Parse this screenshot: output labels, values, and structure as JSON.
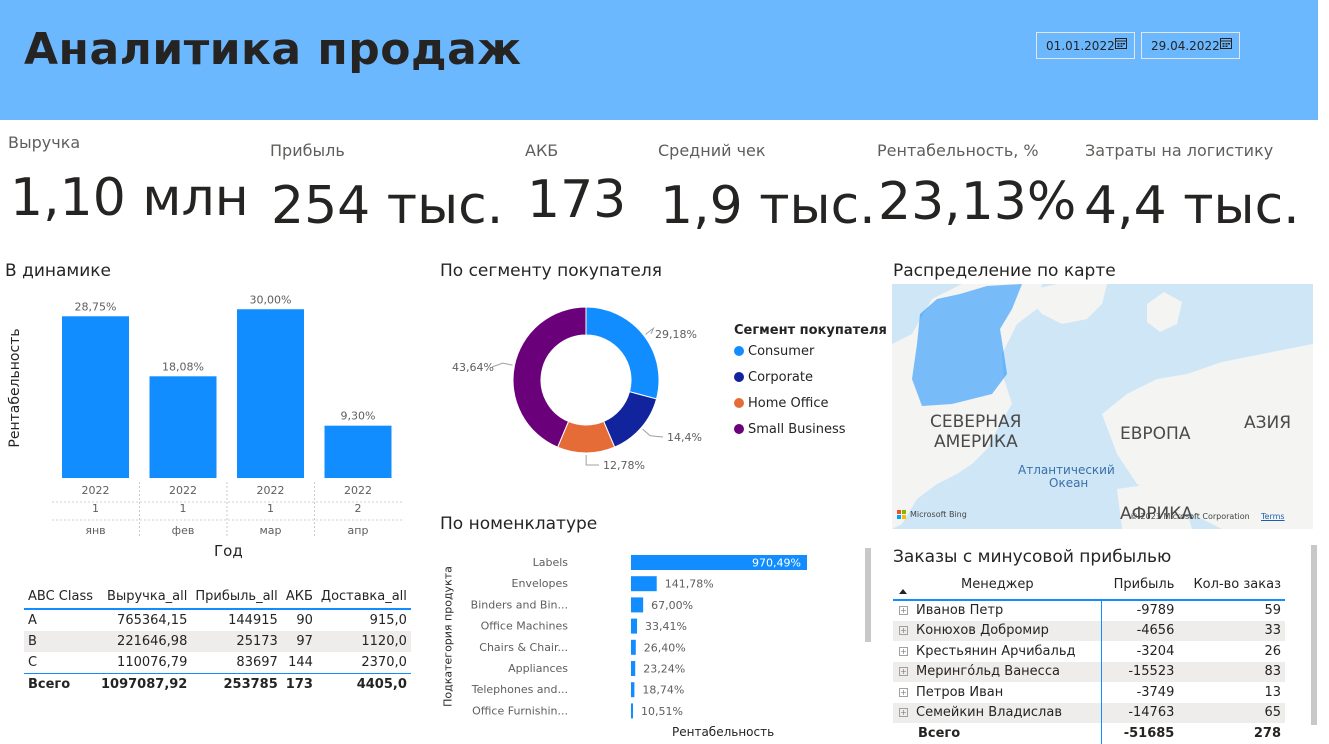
{
  "header": {
    "title": "Аналитика продаж",
    "date_from": "01.01.2022",
    "date_to": "29.04.2022",
    "bg_color": "#6cb8ff"
  },
  "kpis": [
    {
      "label": "Выручка",
      "value": "1,10 млн"
    },
    {
      "label": "Прибыль",
      "value": "254 тыс."
    },
    {
      "label": "АКБ",
      "value": "173"
    },
    {
      "label": "Средний чек",
      "value": "1,9 тыс."
    },
    {
      "label": "Рентабельность, %",
      "value": "23,13%"
    },
    {
      "label": "Затраты на логистику",
      "value": "4,4 тыс."
    }
  ],
  "dynamics": {
    "title": "В динамике",
    "ylabel": "Рентабельность",
    "xlabel": "Год"
  },
  "segment": {
    "title": "По сегменту покупателя",
    "legend_title": "Сегмент покупателя"
  },
  "nomenclature": {
    "title": "По номенклатуре",
    "ylabel": "Подкатегория продукта",
    "xlabel": "Рентабельность"
  },
  "map": {
    "title": "Распределение по карте",
    "labels": {
      "na1": "СЕВЕРНАЯ",
      "na2": "АМЕРИКА",
      "europe": "ЕВРОПА",
      "asia": "АЗИЯ",
      "ocean1": "Атлантический",
      "ocean2": "Океан",
      "africa": "АФРИКА",
      "bing": "Microsoft Bing",
      "copyright": "© 2023 Microsoft Corporation",
      "terms": "Terms"
    }
  },
  "chart_data": [
    {
      "type": "bar",
      "title": "В динамике",
      "xlabel": "Год",
      "ylabel": "Рентабельность",
      "categories": [
        {
          "year": "2022",
          "quarter": "1",
          "month": "янв"
        },
        {
          "year": "2022",
          "quarter": "1",
          "month": "фев"
        },
        {
          "year": "2022",
          "quarter": "1",
          "month": "мар"
        },
        {
          "year": "2022",
          "quarter": "2",
          "month": "апр"
        }
      ],
      "values": [
        28.75,
        18.08,
        30.0,
        9.3
      ],
      "value_labels": [
        "28,75%",
        "18,08%",
        "30,00%",
        "9,30%"
      ],
      "ylim": [
        0,
        32
      ],
      "color": "#118dff"
    },
    {
      "type": "pie",
      "title": "По сегменту покупателя",
      "legend_title": "Сегмент покупателя",
      "categories": [
        "Consumer",
        "Corporate",
        "Home Office",
        "Small Business"
      ],
      "values": [
        29.18,
        14.4,
        12.78,
        43.64
      ],
      "value_labels": [
        "29,18%",
        "14,4%",
        "12,78%",
        "43,64%"
      ],
      "colors": [
        "#118dff",
        "#12239e",
        "#e66c37",
        "#6b007b"
      ],
      "donut": true
    },
    {
      "type": "bar",
      "orientation": "horizontal",
      "title": "По номенклатуре",
      "xlabel": "Рентабельность",
      "ylabel": "Подкатегория продукта",
      "categories": [
        "Labels",
        "Envelopes",
        "Binders and Bin...",
        "Office Machines",
        "Chairs & Chair...",
        "Appliances",
        "Telephones and...",
        "Office Furnishin..."
      ],
      "values": [
        970.49,
        141.78,
        67.0,
        33.41,
        26.4,
        23.24,
        18.74,
        10.51
      ],
      "value_labels": [
        "970,49%",
        "141,78%",
        "67,00%",
        "33,41%",
        "26,40%",
        "23,24%",
        "18,74%",
        "10,51%"
      ],
      "xlim": [
        0,
        970.49
      ],
      "color": "#118dff"
    }
  ],
  "abc_table": {
    "columns": [
      "ABC Class",
      "Выручка_all",
      "Прибыль_all",
      "АКБ",
      "Доставка_all"
    ],
    "rows": [
      [
        "A",
        "765364,15",
        "144915",
        "90",
        "915,0"
      ],
      [
        "B",
        "221646,98",
        "25173",
        "97",
        "1120,0"
      ],
      [
        "C",
        "110076,79",
        "83697",
        "144",
        "2370,0"
      ]
    ],
    "total": [
      "Всего",
      "1097087,92",
      "253785",
      "173",
      "4405,0"
    ]
  },
  "orders": {
    "title": "Заказы с минусовой прибылью",
    "columns": [
      "Менеджер",
      "Прибыль",
      "Кол-во заказ"
    ],
    "rows": [
      [
        "Иванов Петр",
        "-9789",
        "59"
      ],
      [
        "Конюхов Добромир",
        "-4656",
        "33"
      ],
      [
        "Крестьянин Арчибальд",
        "-3204",
        "26"
      ],
      [
        "Меринго́льд Ванесса",
        "-15523",
        "83"
      ],
      [
        "Петров Иван",
        "-3749",
        "13"
      ],
      [
        "Семейкин Владислав",
        "-14763",
        "65"
      ]
    ],
    "total": [
      "Всего",
      "-51685",
      "278"
    ]
  }
}
